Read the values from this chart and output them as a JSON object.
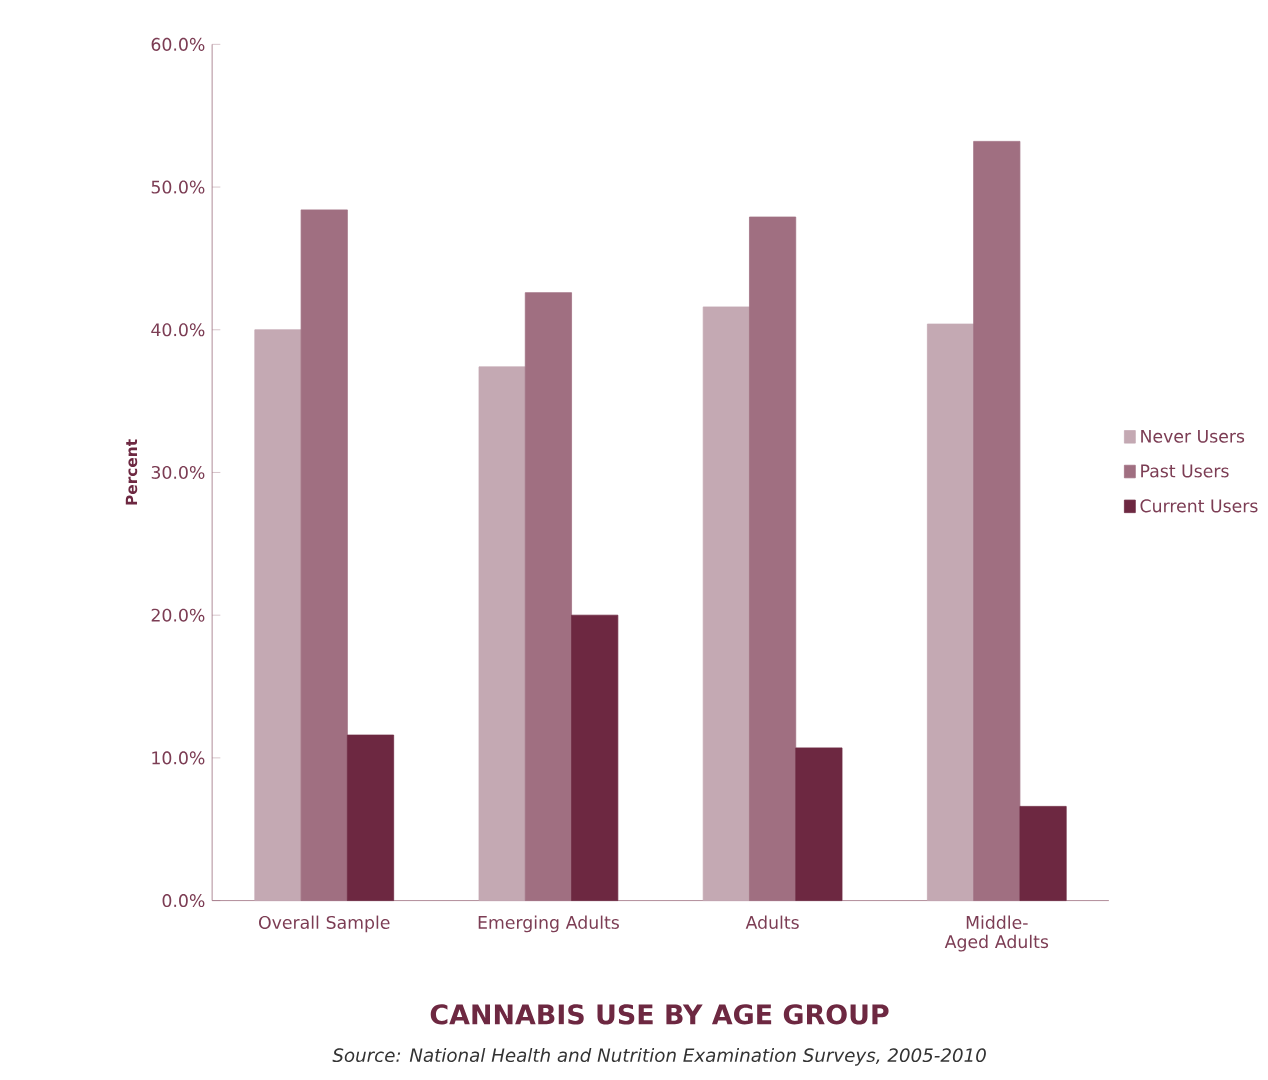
{
  "chart_data": {
    "type": "bar",
    "title": "CANNABIS USE BY AGE GROUP",
    "ylabel": "Percent",
    "annotations": [
      "Source: National Health and Nutrition Examination Surveys, 2005-2010"
    ],
    "categories": [
      "Overall Sample",
      "Emerging Adults",
      "Adults",
      "Middle-Aged Adults"
    ],
    "series": [
      {
        "name": "Never Users",
        "color": "#c4a9b3",
        "values": [
          40.0,
          37.4,
          41.6,
          40.4
        ]
      },
      {
        "name": "Past Users",
        "color": "#a06f81",
        "values": [
          48.4,
          42.6,
          47.9,
          53.2
        ]
      },
      {
        "name": "Current Users",
        "color": "#6d2841",
        "values": [
          11.6,
          20.0,
          10.7,
          6.6
        ]
      }
    ],
    "ylim": [
      0,
      60
    ],
    "yticks": [
      {
        "value": 0,
        "label": "0.0%"
      },
      {
        "value": 10,
        "label": "10.0%"
      },
      {
        "value": 20,
        "label": "20.0%"
      },
      {
        "value": 30,
        "label": "30.0%"
      },
      {
        "value": 40,
        "label": "40.0%"
      },
      {
        "value": 50,
        "label": "50.0%"
      },
      {
        "value": 60,
        "label": "60.0%"
      }
    ],
    "legend": "right",
    "grid": false
  }
}
